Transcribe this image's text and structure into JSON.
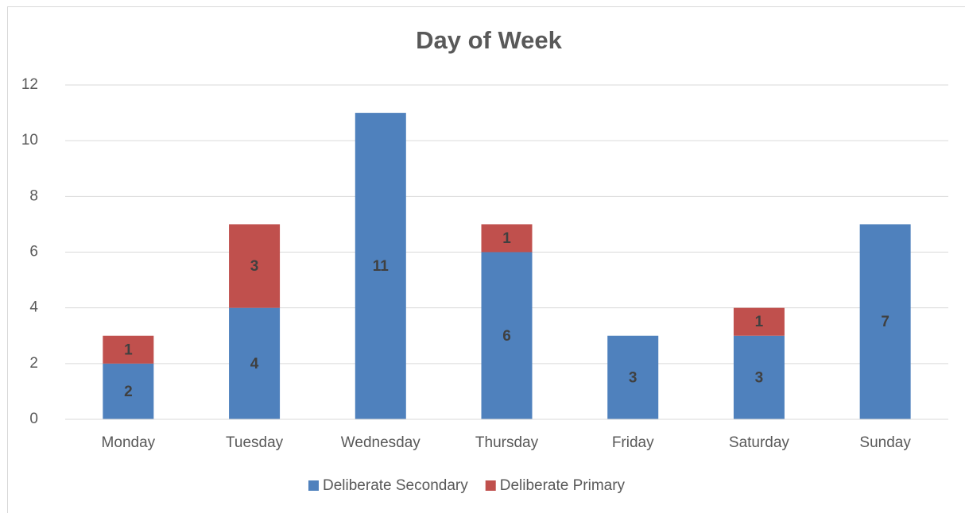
{
  "chart_data": {
    "type": "stacked_bar",
    "title": "Day of Week",
    "categories": [
      "Monday",
      "Tuesday",
      "Wednesday",
      "Thursday",
      "Friday",
      "Saturday",
      "Sunday"
    ],
    "series": [
      {
        "name": "Deliberate Secondary",
        "color": "#4f81bd",
        "values": [
          2,
          4,
          11,
          6,
          3,
          3,
          7
        ]
      },
      {
        "name": "Deliberate Primary",
        "color": "#c0504d",
        "values": [
          1,
          3,
          null,
          1,
          null,
          1,
          null
        ]
      }
    ],
    "ylim": [
      0,
      12
    ],
    "yticks": [
      0,
      2,
      4,
      6,
      8,
      10,
      12
    ],
    "grid": true,
    "legend": "bottom"
  }
}
